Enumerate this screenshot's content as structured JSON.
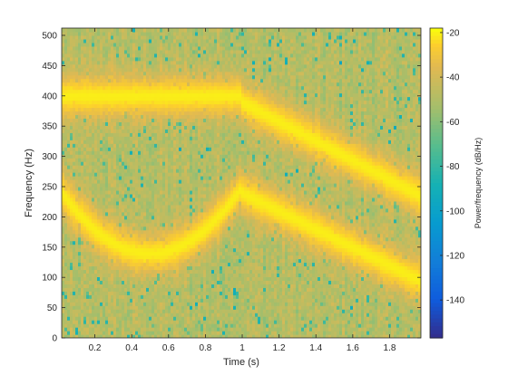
{
  "chart_data": {
    "type": "heatmap",
    "title": "",
    "xlabel": "Time (s)",
    "ylabel": "Frequency (Hz)",
    "colorbar_label": "Power/frequency (dB/Hz)",
    "xlim": [
      0.02,
      1.97
    ],
    "ylim": [
      0,
      512
    ],
    "clim": [
      -157,
      -18
    ],
    "colormap": "parula",
    "xticks": [
      0.2,
      0.4,
      0.6,
      0.8,
      1,
      1.2,
      1.4,
      1.6,
      1.8
    ],
    "xtick_labels": [
      "0.2",
      "0.4",
      "0.6",
      "0.8",
      "1",
      "1.2",
      "1.4",
      "1.6",
      "1.8"
    ],
    "yticks": [
      0,
      50,
      100,
      150,
      200,
      250,
      300,
      350,
      400,
      450,
      500
    ],
    "ytick_labels": [
      "0",
      "50",
      "100",
      "150",
      "200",
      "250",
      "300",
      "350",
      "400",
      "450",
      "500"
    ],
    "cticks": [
      -20,
      -40,
      -60,
      -80,
      -100,
      -120,
      -140
    ],
    "ctick_labels": [
      "-20",
      "-40",
      "-60",
      "-80",
      "-100",
      "-120",
      "-140"
    ],
    "background_level_db": -48,
    "ridge_peak_db": -20,
    "series": [
      {
        "type": "quadratic",
        "segments": [
          {
            "t": [
              0.0,
              0.25,
              0.5,
              0.75,
              1.0
            ],
            "f": [
              250,
              165,
              140,
              165,
              250
            ]
          }
        ]
      },
      {
        "type": "constant",
        "segments": [
          {
            "t": [
              0.0,
              1.0
            ],
            "f": [
              400,
              400
            ]
          }
        ]
      },
      {
        "type": "linear",
        "segments": [
          {
            "t": [
              1.0,
              2.0
            ],
            "f": [
              240,
              90
            ]
          },
          {
            "t": [
              1.0,
              2.0
            ],
            "f": [
              390,
              230
            ]
          }
        ]
      }
    ]
  }
}
